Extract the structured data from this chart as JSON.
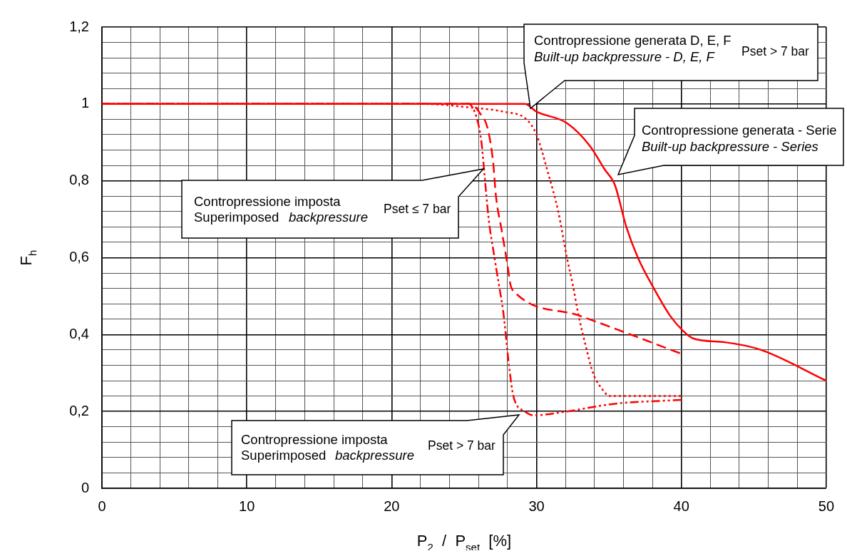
{
  "chart_data": {
    "type": "line",
    "xlabel": "P$_{2}$  /  P$_{set}$  [%]",
    "ylabel": "F$_{h}$",
    "xlim": [
      0,
      50
    ],
    "xticks": [
      0,
      {
        "value": 2,
        "label": null
      },
      {
        "value": 4,
        "label": null
      },
      {
        "value": 6,
        "label": null
      },
      {
        "value": 8,
        "label": null
      },
      10,
      {
        "value": 12,
        "label": null
      },
      {
        "value": 14,
        "label": null
      },
      {
        "value": 16,
        "label": null
      },
      {
        "value": 18,
        "label": null
      },
      20,
      {
        "value": 22,
        "label": null
      },
      {
        "value": 24,
        "label": null
      },
      {
        "value": 26,
        "label": null
      },
      {
        "value": 28,
        "label": null
      },
      30,
      {
        "value": 32,
        "label": null
      },
      {
        "value": 34,
        "label": null
      },
      {
        "value": 36,
        "label": null
      },
      {
        "value": 38,
        "label": null
      },
      40,
      {
        "value": 42,
        "label": null
      },
      {
        "value": 44,
        "label": null
      },
      {
        "value": 46,
        "label": null
      },
      {
        "value": 48,
        "label": null
      },
      50
    ],
    "ylim": [
      0,
      1.2
    ],
    "yticks": [
      0,
      {
        "value": 0.04,
        "label": null
      },
      {
        "value": 0.08,
        "label": null
      },
      {
        "value": 0.12,
        "label": null
      },
      {
        "value": 0.16,
        "label": null
      },
      {
        "value": 0.2,
        "label": "0,2"
      },
      {
        "value": 0.24,
        "label": null
      },
      {
        "value": 0.28,
        "label": null
      },
      {
        "value": 0.32,
        "label": null
      },
      {
        "value": 0.36,
        "label": null
      },
      {
        "value": 0.4,
        "label": "0,4"
      },
      {
        "value": 0.44,
        "label": null
      },
      {
        "value": 0.48,
        "label": null
      },
      {
        "value": 0.52,
        "label": null
      },
      {
        "value": 0.56,
        "label": null
      },
      {
        "value": 0.6,
        "label": "0,6"
      },
      {
        "value": 0.64,
        "label": null
      },
      {
        "value": 0.68,
        "label": null
      },
      {
        "value": 0.72,
        "label": null
      },
      {
        "value": 0.76,
        "label": null
      },
      {
        "value": 0.8,
        "label": "0,8"
      },
      {
        "value": 0.84,
        "label": null
      },
      {
        "value": 0.88,
        "label": null
      },
      {
        "value": 0.92,
        "label": null
      },
      {
        "value": 0.96,
        "label": null
      },
      1,
      {
        "value": 1.04,
        "label": null
      },
      {
        "value": 1.08,
        "label": null
      },
      {
        "value": 1.12,
        "label": null
      },
      {
        "value": 1.16,
        "label": null
      },
      {
        "value": 1.2,
        "label": "1,2"
      }
    ],
    "grid": true,
    "legend": false,
    "series": [
      {
        "color": "#ff0000",
        "line_style": "solid",
        "x": [
          0,
          28,
          29.2,
          30,
          32.1,
          33.7,
          34.7,
          35.4,
          36.2,
          37,
          38.1,
          39.2,
          40.1,
          40.8,
          43,
          45.5,
          50
        ],
        "values": [
          1,
          1,
          1,
          0.98,
          0.95,
          0.89,
          0.83,
          0.79,
          0.68,
          0.6,
          0.52,
          0.45,
          0.41,
          0.39,
          0.38,
          0.36,
          0.28
        ]
      },
      {
        "color": "#ff0000",
        "line_style": "dashed",
        "x": [
          0,
          25.4,
          26.2,
          26.6,
          27,
          27.2,
          27.6,
          28,
          28.2,
          28.5,
          32.9,
          40
        ],
        "values": [
          1,
          1,
          0.97,
          0.94,
          0.85,
          0.76,
          0.67,
          0.58,
          0.53,
          0.51,
          0.45,
          0.35
        ]
      },
      {
        "color": "#ff0000",
        "line_style": "dashdot",
        "x": [
          0,
          25.3,
          25.9,
          26.2,
          26.4,
          26.7,
          27.1,
          27.4,
          27.7,
          28.1,
          28.4,
          29.2,
          29.8,
          32.1,
          35.4,
          40
        ],
        "values": [
          1,
          1,
          0.96,
          0.9,
          0.82,
          0.7,
          0.6,
          0.53,
          0.46,
          0.32,
          0.24,
          0.2,
          0.19,
          0.2,
          0.22,
          0.23
        ]
      },
      {
        "color": "#ff0000",
        "line_style": "dotted",
        "x": [
          0,
          22.3,
          25.6,
          27.7,
          29.3,
          30,
          30.8,
          31.5,
          32.1,
          32.5,
          32.9,
          33.4,
          33.9,
          34.7,
          35,
          40
        ],
        "values": [
          1,
          1,
          0.99,
          0.98,
          0.96,
          0.92,
          0.82,
          0.72,
          0.6,
          0.53,
          0.45,
          0.37,
          0.3,
          0.25,
          0.24,
          0.24
        ]
      }
    ],
    "annotations": [
      "Contropressione generata D, E, F",
      "Built-up backpressure - D, E, F",
      "Pset > 7 bar",
      "Contropressione generata - Serie",
      "Built-up backpressure - Series",
      "Contropressione imposta",
      "Superimposed",
      "backpressure",
      "Pset ≤ 7 bar",
      "Contropressione imposta",
      "Superimposed",
      "backpressure",
      "Pset > 7 bar"
    ]
  }
}
